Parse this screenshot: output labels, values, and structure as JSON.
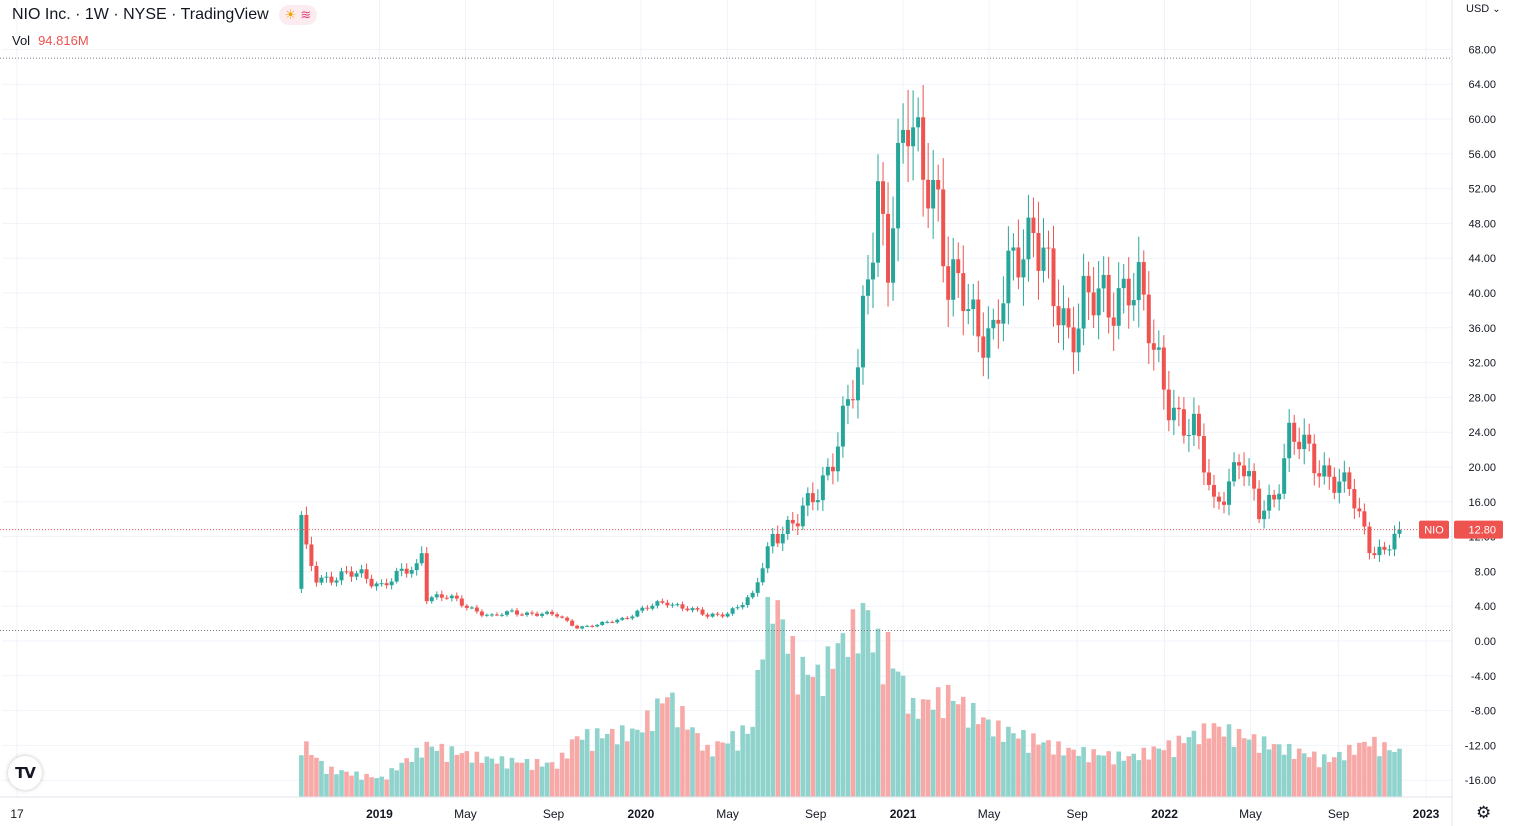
{
  "header": {
    "title": "NIO Inc. · 1W · NYSE · TradingView",
    "market_icon": "sun-icon",
    "data_icon": "waves-icon",
    "volume_label": "Vol",
    "volume_value": "94.816M",
    "currency": "USD",
    "logo_text": "TV"
  },
  "colors": {
    "up": "#26a69a",
    "down": "#ef5350",
    "up_volume": "#8fd3cc",
    "down_volume": "#f7a9a8",
    "grid": "#f0f3fa",
    "axis_text": "#131722"
  },
  "last_price": {
    "symbol": "NIO",
    "value": "12.80"
  },
  "chart_data": {
    "type": "candlestick",
    "title": "NIO Inc. · 1W · NYSE",
    "interval": "1W",
    "y_axis": {
      "range": [
        -18,
        70
      ],
      "ticks": [
        "68.00",
        "64.00",
        "60.00",
        "56.00",
        "52.00",
        "48.00",
        "44.00",
        "40.00",
        "36.00",
        "32.00",
        "28.00",
        "24.00",
        "20.00",
        "16.00",
        "12.00",
        "8.00",
        "4.00",
        "0.00",
        "-4.00",
        "-8.00",
        "-12.00",
        "-16.00"
      ]
    },
    "x_axis": {
      "labels": [
        "17",
        "2019",
        "May",
        "Sep",
        "2020",
        "May",
        "Sep",
        "2021",
        "May",
        "Sep",
        "2022",
        "May",
        "Sep",
        "2023"
      ]
    },
    "high_reference": 67.0,
    "low_reference": 1.2,
    "last_close": 12.8,
    "grid": true,
    "volume_overlay": true,
    "series": [
      {
        "name": "NIO",
        "anchors": [
          [
            "2018-09-14",
            13.8
          ],
          [
            "2018-09-21",
            10.0
          ],
          [
            "2018-10-05",
            7.3
          ],
          [
            "2018-11-02",
            7.4
          ],
          [
            "2018-12-07",
            7.6
          ],
          [
            "2019-01-04",
            6.5
          ],
          [
            "2019-02-22",
            8.5
          ],
          [
            "2019-03-01",
            10.5
          ],
          [
            "2019-03-08",
            5.2
          ],
          [
            "2019-04-05",
            5.0
          ],
          [
            "2019-05-03",
            4.0
          ],
          [
            "2019-06-07",
            2.8
          ],
          [
            "2019-07-05",
            3.3
          ],
          [
            "2019-08-02",
            3.2
          ],
          [
            "2019-09-06",
            2.9
          ],
          [
            "2019-10-04",
            1.6
          ],
          [
            "2019-11-01",
            1.8
          ],
          [
            "2019-12-06",
            2.6
          ],
          [
            "2020-01-03",
            3.6
          ],
          [
            "2020-02-07",
            4.5
          ],
          [
            "2020-03-06",
            3.8
          ],
          [
            "2020-04-03",
            2.8
          ],
          [
            "2020-05-01",
            3.3
          ],
          [
            "2020-06-05",
            5.0
          ],
          [
            "2020-06-26",
            10.5
          ],
          [
            "2020-07-03",
            12.5
          ],
          [
            "2020-08-07",
            13.5
          ],
          [
            "2020-09-04",
            17.5
          ],
          [
            "2020-10-02",
            23.0
          ],
          [
            "2020-10-30",
            30.0
          ],
          [
            "2020-11-13",
            44.0
          ],
          [
            "2020-11-27",
            53.0
          ],
          [
            "2020-12-11",
            44.0
          ],
          [
            "2021-01-08",
            59.0
          ],
          [
            "2021-01-15",
            58.5
          ],
          [
            "2021-02-05",
            56.0
          ],
          [
            "2021-02-19",
            49.5
          ],
          [
            "2021-03-05",
            39.0
          ],
          [
            "2021-03-26",
            40.5
          ],
          [
            "2021-05-07",
            34.0
          ],
          [
            "2021-06-11",
            46.0
          ],
          [
            "2021-07-02",
            48.5
          ],
          [
            "2021-07-30",
            38.0
          ],
          [
            "2021-08-20",
            35.5
          ],
          [
            "2021-09-10",
            40.5
          ],
          [
            "2021-10-15",
            37.0
          ],
          [
            "2021-11-12",
            43.0
          ],
          [
            "2021-11-26",
            41.0
          ],
          [
            "2021-12-17",
            32.0
          ],
          [
            "2022-01-07",
            28.0
          ],
          [
            "2022-02-11",
            24.0
          ],
          [
            "2022-03-11",
            15.5
          ],
          [
            "2022-04-15",
            21.0
          ],
          [
            "2022-05-13",
            14.5
          ],
          [
            "2022-06-03",
            17.0
          ],
          [
            "2022-06-24",
            23.5
          ],
          [
            "2022-07-29",
            20.5
          ],
          [
            "2022-08-19",
            19.5
          ],
          [
            "2022-09-16",
            17.0
          ],
          [
            "2022-10-14",
            11.0
          ],
          [
            "2022-11-04",
            10.5
          ],
          [
            "2022-11-25",
            12.8
          ]
        ]
      },
      {
        "name": "Vol",
        "unit": "millions",
        "anchors": [
          [
            "2018-09-14",
            120
          ],
          [
            "2018-10-19",
            60
          ],
          [
            "2019-01-04",
            40
          ],
          [
            "2019-03-08",
            110
          ],
          [
            "2019-06-07",
            80
          ],
          [
            "2019-09-06",
            70
          ],
          [
            "2019-10-04",
            130
          ],
          [
            "2019-12-27",
            140
          ],
          [
            "2020-02-07",
            220
          ],
          [
            "2020-04-03",
            100
          ],
          [
            "2020-06-05",
            150
          ],
          [
            "2020-06-26",
            460
          ],
          [
            "2020-08-07",
            280
          ],
          [
            "2020-09-04",
            260
          ],
          [
            "2020-10-02",
            320
          ],
          [
            "2020-11-13",
            400
          ],
          [
            "2020-11-20",
            330
          ],
          [
            "2020-12-11",
            320
          ],
          [
            "2021-01-15",
            190
          ],
          [
            "2021-03-05",
            220
          ],
          [
            "2021-05-07",
            150
          ],
          [
            "2021-08-20",
            100
          ],
          [
            "2021-11-12",
            85
          ],
          [
            "2022-01-07",
            110
          ],
          [
            "2022-03-11",
            150
          ],
          [
            "2022-06-03",
            110
          ],
          [
            "2022-08-19",
            80
          ],
          [
            "2022-10-14",
            120
          ],
          [
            "2022-11-25",
            95
          ]
        ]
      }
    ]
  }
}
